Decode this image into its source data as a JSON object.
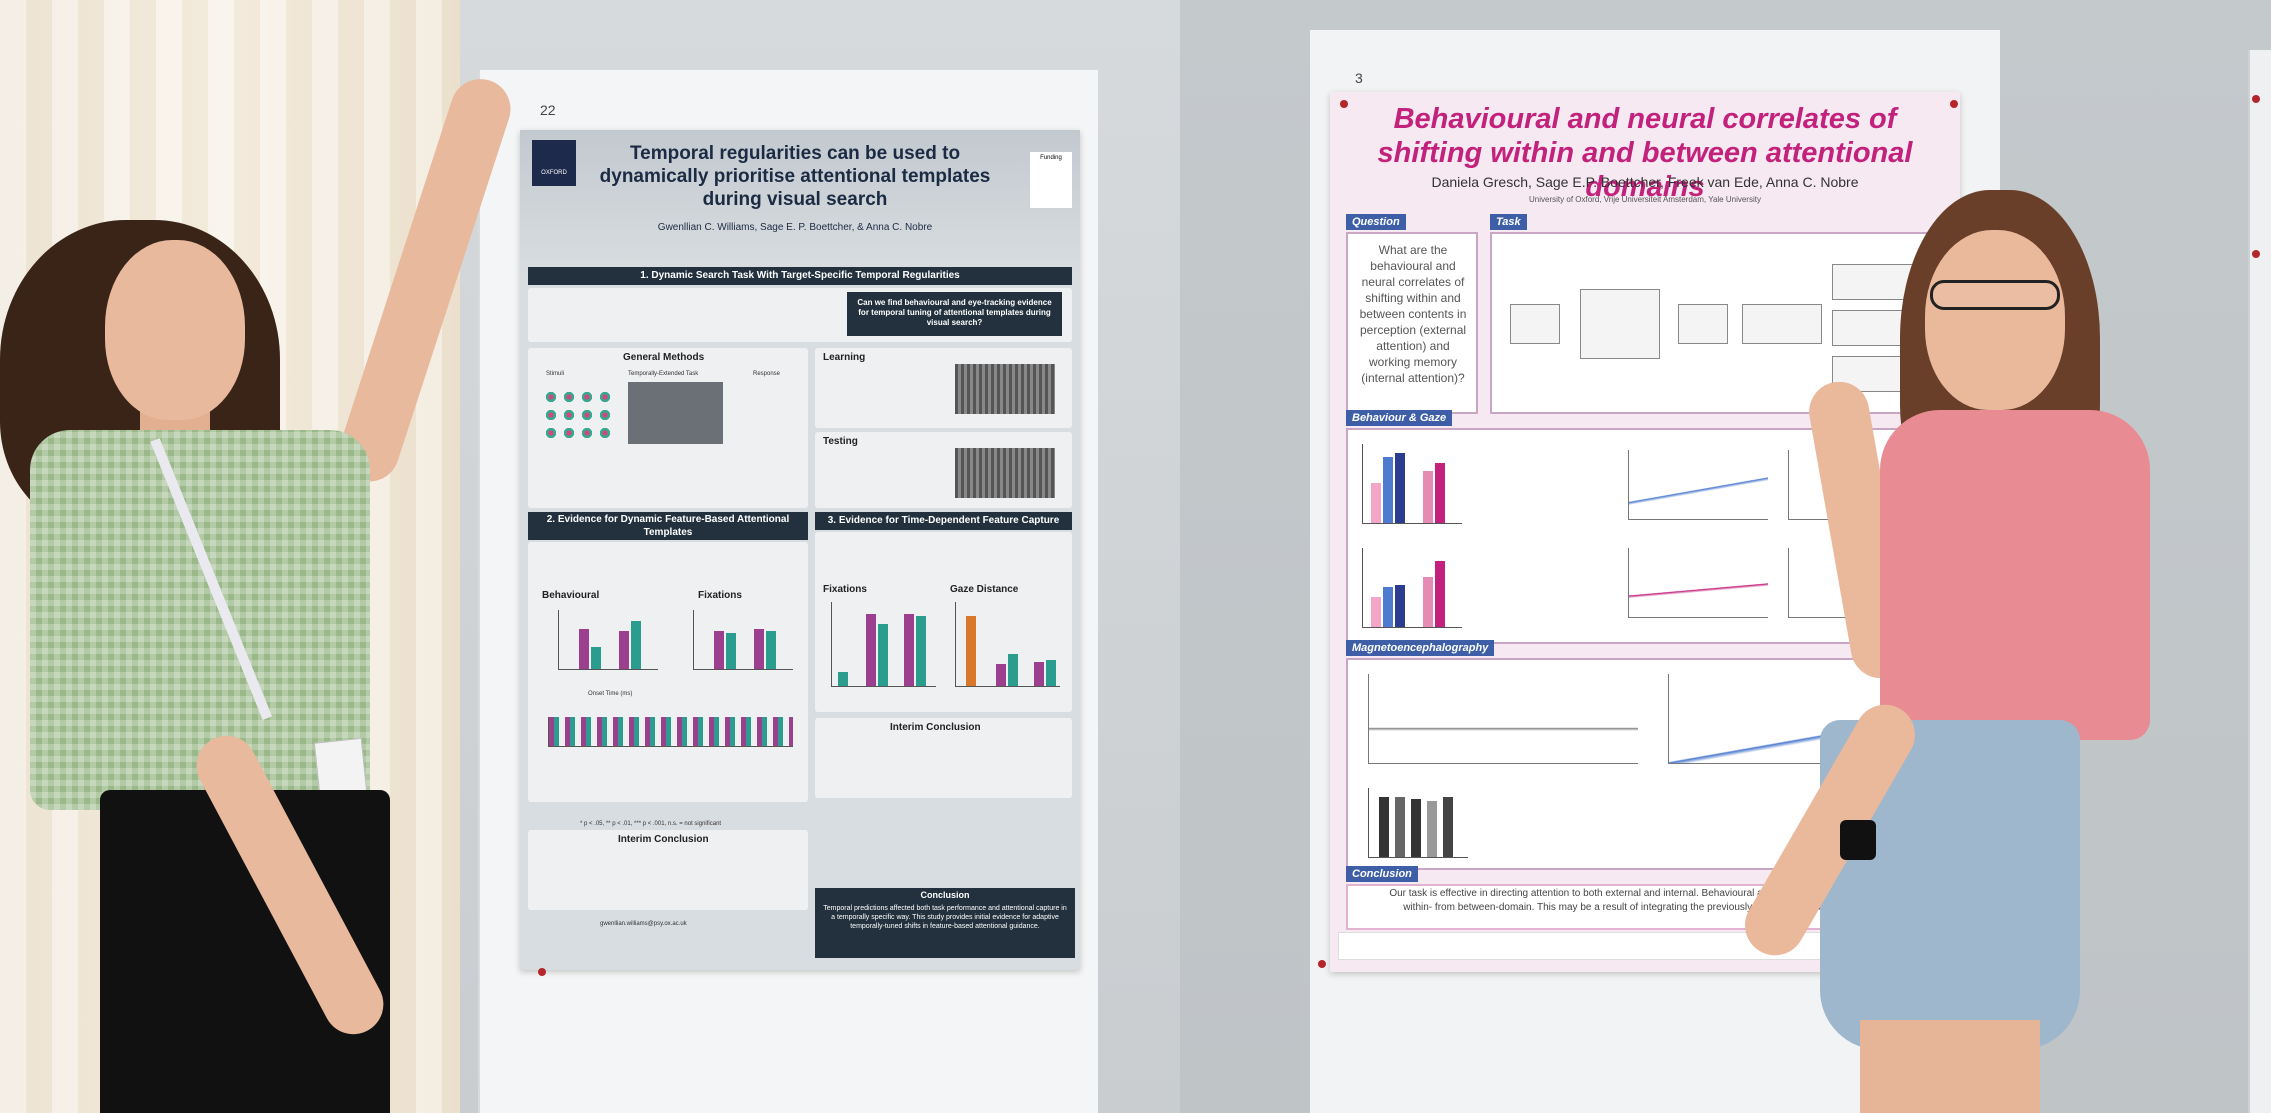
{
  "poster_left": {
    "number": "22",
    "title": "Temporal regularities can be used to dynamically prioritise attentional templates during visual search",
    "authors": "Gwenllian C. Williams, Sage E. P. Boettcher, & Anna C. Nobre",
    "logo_text": "OXFORD",
    "funding_label": "Funding",
    "section1": "1. Dynamic Search Task With Target-Specific Temporal Regularities",
    "question": "Can we find behavioural and eye-tracking evidence for temporal tuning of attentional templates during visual search?",
    "general_methods": "General Methods",
    "stimuli_label": "Stimuli",
    "task_label": "Temporally-Extended Task",
    "response_label": "Response",
    "learning_title": "Learning",
    "testing_title": "Testing",
    "section2": "2. Evidence for Dynamic Feature-Based Attentional Templates",
    "section3": "3. Evidence for Time-Dependent Feature Capture",
    "behavioural_label": "Behavioural",
    "fixations_label": "Fixations",
    "gaze_distance_label": "Gaze Distance",
    "onset_label": "Onset Time (ms)",
    "interim_conclusion": "Interim Conclusion",
    "conclusion_title": "Conclusion",
    "conclusion_text": "Temporal predictions affected both task performance and attentional capture in a temporally specific way. This study provides initial evidence for adaptive temporally-tuned shifts in feature-based attentional guidance.",
    "email": "gwenllian.williams@psy.ox.ac.uk",
    "significance_note": "* p < .05, ** p < .01, *** p < .001, n.s. = not significant"
  },
  "poster_right": {
    "number": "3",
    "title": "Behavioural and neural correlates of shifting within and between attentional domains",
    "authors": "Daniela Gresch, Sage E.P. Boettcher, Freek van Ede, Anna C. Nobre",
    "affiliations": "University of Oxford, Vrije Universiteit Amsterdam, Yale University",
    "question_label": "Question",
    "question_text": "What are the behavioural and neural correlates of shifting within and between contents in perception (external attention) and working memory (internal attention)?",
    "task_label": "Task",
    "behaviour_label": "Behaviour & Gaze",
    "meg_label": "Magnetoencephalography",
    "conclusion_label": "Conclusion",
    "conclusion_text": "Our task is effective in directing attention to both external and internal. Behavioural and neural activity can distinguish within- from between-domain. This may be a result of integrating the previously and currently attended domain."
  },
  "colors": {
    "poster_left_accent": "#22313d",
    "poster_right_title": "#c2217c",
    "poster_right_label": "#3e5fa8",
    "bar_purple": "#9b3f8e",
    "bar_teal": "#2a9d8f"
  }
}
